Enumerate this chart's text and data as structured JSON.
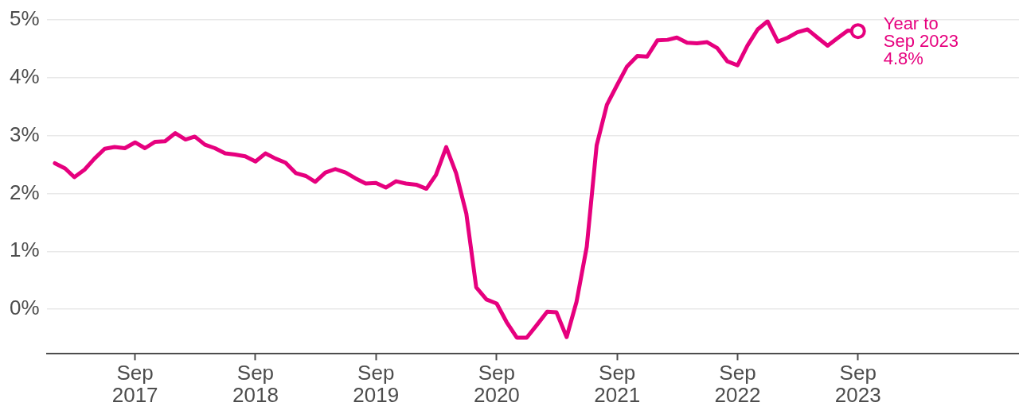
{
  "chart_data": {
    "type": "line",
    "x": [
      "2017-01",
      "2017-02",
      "2017-03",
      "2017-04",
      "2017-05",
      "2017-06",
      "2017-07",
      "2017-08",
      "2017-09",
      "2017-10",
      "2017-11",
      "2017-12",
      "2018-01",
      "2018-02",
      "2018-03",
      "2018-04",
      "2018-05",
      "2018-06",
      "2018-07",
      "2018-08",
      "2018-09",
      "2018-10",
      "2018-11",
      "2018-12",
      "2019-01",
      "2019-02",
      "2019-03",
      "2019-04",
      "2019-05",
      "2019-06",
      "2019-07",
      "2019-08",
      "2019-09",
      "2019-10",
      "2019-11",
      "2019-12",
      "2020-01",
      "2020-02",
      "2020-03",
      "2020-04",
      "2020-05",
      "2020-06",
      "2020-07",
      "2020-08",
      "2020-09",
      "2020-10",
      "2020-11",
      "2020-12",
      "2021-01",
      "2021-02",
      "2021-03",
      "2021-04",
      "2021-05",
      "2021-06",
      "2021-07",
      "2021-08",
      "2021-09",
      "2021-10",
      "2021-11",
      "2021-12",
      "2022-01",
      "2022-02",
      "2022-03",
      "2022-04",
      "2022-05",
      "2022-06",
      "2022-07",
      "2022-08",
      "2022-09",
      "2022-10",
      "2022-11",
      "2022-12",
      "2023-01",
      "2023-02",
      "2023-03",
      "2023-04",
      "2023-05",
      "2023-06",
      "2023-07",
      "2023-08",
      "2023-09"
    ],
    "series": [
      {
        "color": "#e6007e",
        "marker": "none",
        "line_style": "solid",
        "values": [
          2.52,
          2.43,
          2.28,
          2.41,
          2.6,
          2.77,
          2.8,
          2.78,
          2.88,
          2.78,
          2.89,
          2.9,
          3.04,
          2.93,
          2.98,
          2.84,
          2.78,
          2.69,
          2.67,
          2.64,
          2.55,
          2.69,
          2.6,
          2.53,
          2.35,
          2.3,
          2.2,
          2.36,
          2.42,
          2.36,
          2.26,
          2.17,
          2.18,
          2.1,
          2.21,
          2.17,
          2.15,
          2.08,
          2.32,
          2.8,
          2.35,
          1.65,
          0.38,
          0.17,
          0.1,
          -0.22,
          -0.49,
          -0.49,
          -0.27,
          -0.04,
          -0.05,
          -0.48,
          0.13,
          1.08,
          2.83,
          3.53,
          3.87,
          4.19,
          4.37,
          4.36,
          4.64,
          4.65,
          4.69,
          4.6,
          4.59,
          4.61,
          4.51,
          4.28,
          4.21,
          4.55,
          4.83,
          4.97,
          4.62,
          4.69,
          4.78,
          4.83,
          4.69,
          4.55,
          4.68,
          4.81,
          4.8
        ]
      },
      {
        "type": "scatter",
        "x": [
          "2023-09"
        ],
        "values": [
          4.8
        ],
        "color": "#e6007e",
        "marker": "circle"
      }
    ],
    "xlim": [
      "2016-12-07",
      "2025-01-01"
    ],
    "xticks": [
      {
        "value": "2017-09",
        "label": "Sep 2017"
      },
      {
        "value": "2018-09",
        "label": "Sep 2018"
      },
      {
        "value": "2019-09",
        "label": "Sep 2019"
      },
      {
        "value": "2020-09",
        "label": "Sep 2020"
      },
      {
        "value": "2021-09",
        "label": "Sep 2021"
      },
      {
        "value": "2022-09",
        "label": "Sep 2022"
      },
      {
        "value": "2023-09",
        "label": "Sep 2023"
      }
    ],
    "ylim": [
      -0.77,
      5
    ],
    "yticks": [
      {
        "value": 0,
        "label": "0%"
      },
      {
        "value": 1,
        "label": "1%"
      },
      {
        "value": 2,
        "label": "2%"
      },
      {
        "value": 3,
        "label": "3%"
      },
      {
        "value": 4,
        "label": "4%"
      },
      {
        "value": 5,
        "label": "5%"
      }
    ],
    "grid": "y",
    "annotations": [
      {
        "text": "Year to Sep 2023 4.8%",
        "x": "2023-09",
        "y": 4.8
      }
    ]
  }
}
